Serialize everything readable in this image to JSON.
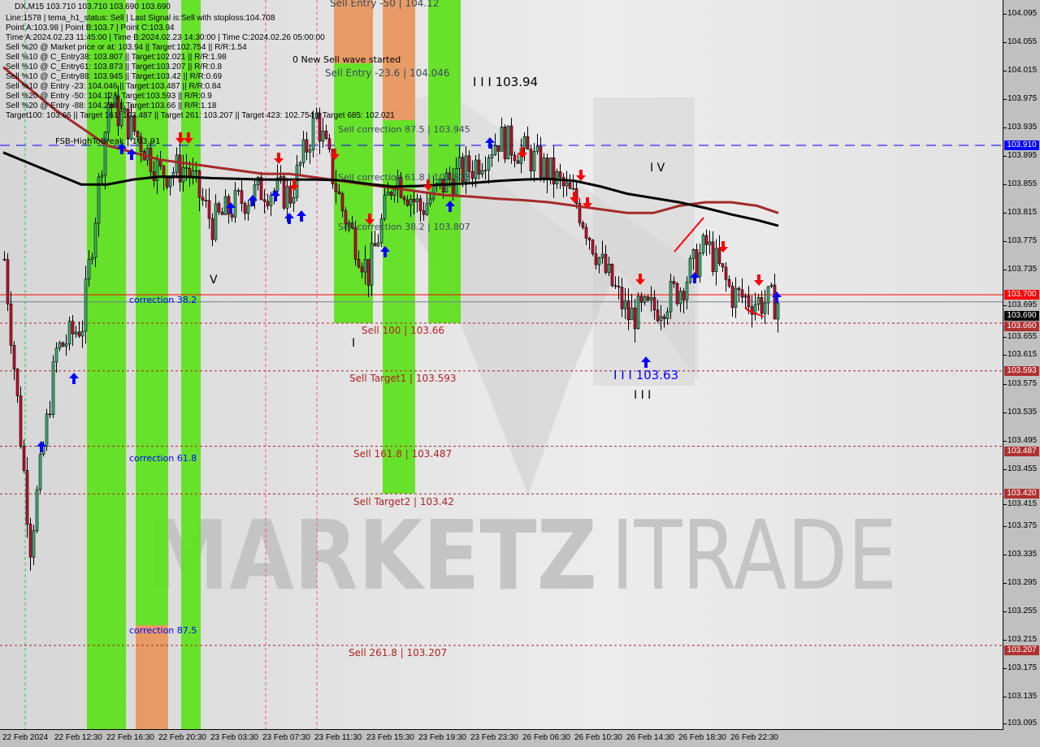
{
  "info": {
    "symbol_line": "DX,M15  103.710 103.710 103.690 103.690",
    "lines": [
      "Line:1578 | tema_h1_status: Sell | Last Signal is:Sell with stoploss:104.708",
      "Point A:103.98 | Point B:103.7 | Point C:103.94",
      "Time A:2024.02.23 11:45:00 | Time B:2024.02.23 14:30:00 | Time C:2024.02.26 05:00:00",
      "Sell %20 @ Market price or at: 103.94 || Target:102.754 || R/R:1.54",
      "Sell %10 @ C_Entry38: 103.807 || Target:102.021 || R/R:1.98",
      "Sell %10 @ C_Entry61: 103.873 || Target:103.207 || R/R:0.8",
      "Sell %10 @ C_Entry88: 103.945 || Target:103.42 || R/R:0.69",
      "Sell %10 @ Entry -23: 104.046 || Target:103.487 || R/R:0.84",
      "Sell %20 @ Entry -50: 104.12 || Target:103.593 || R/R:0.9",
      "Sell %20 @ Entry -88: 104.228 || Target:103.66 || R/R:1.18",
      "Target100: 103.66 || Target 161: 103.487 || Target 261: 103.207 || Target 423: 102.754 || Target 685: 102.021"
    ]
  },
  "annotations": {
    "new_wave": "0 New Sell wave started",
    "fsb": "FSB-HighToBreak | 103.91",
    "sell_entry_50": "Sell Entry -50 | 104.12",
    "sell_entry_23": "Sell Entry -23.6 | 104.046",
    "sell_corr_875": "Sell correction 87.5 | 103.945",
    "sell_corr_618": "Sell correction 61.8 | 103.873",
    "sell_corr_382": "Sell correction 38.2 | 103.807",
    "sell_100": "Sell 100 | 103.66",
    "sell_target1": "Sell Target1 | 103.593",
    "sell_1618": "Sell 161.8 | 103.487",
    "sell_target2": "Sell Target2 | 103.42",
    "sell_2618": "Sell 261.8 | 103.207",
    "corr_382": "correction 38.2",
    "corr_618": "correction 61.8",
    "corr_875": "correction 87.5",
    "wave_iii_top": "I I I 103.94",
    "wave_iv": "I V",
    "wave_v": "V",
    "wave_iii_low": "I I I 103.63",
    "wave_iii": "I I I",
    "wave_i": "I",
    "watermark_a": "MARKETZ",
    "watermark_b": "ITRADE"
  },
  "chart_data": {
    "type": "candlestick",
    "symbol": "DX",
    "timeframe": "M15",
    "ylim": [
      103.075,
      104.115
    ],
    "y_ticks": [
      "104.095",
      "104.055",
      "104.015",
      "103.975",
      "103.935",
      "103.895",
      "103.855",
      "103.815",
      "103.775",
      "103.735",
      "103.695",
      "103.655",
      "103.615",
      "103.575",
      "103.535",
      "103.495",
      "103.455",
      "103.415",
      "103.375",
      "103.335",
      "103.295",
      "103.255",
      "103.215",
      "103.175",
      "103.135",
      "103.095"
    ],
    "x_ticks": [
      "22 Feb 2024",
      "22 Feb 12:30",
      "22 Feb 16:30",
      "22 Feb 20:30",
      "23 Feb 03:30",
      "23 Feb 07:30",
      "23 Feb 11:30",
      "23 Feb 15:30",
      "23 Feb 19:30",
      "23 Feb 23:30",
      "26 Feb 06:30",
      "26 Feb 10:30",
      "26 Feb 14:30",
      "26 Feb 18:30",
      "26 Feb 22:30"
    ],
    "approx_close_every_2h": [
      103.75,
      103.35,
      103.62,
      103.66,
      103.97,
      103.93,
      103.87,
      103.88,
      103.8,
      103.83,
      103.85,
      103.84,
      103.95,
      103.82,
      103.73,
      103.87,
      103.82,
      103.86,
      103.88,
      103.92,
      103.9,
      103.87,
      103.83,
      103.74,
      103.67,
      103.68,
      103.71,
      103.77,
      103.7,
      103.69,
      103.69
    ],
    "ma_red": [
      104.02,
      103.99,
      103.96,
      103.935,
      103.91,
      103.9,
      103.89,
      103.885,
      103.88,
      103.875,
      103.87,
      103.87,
      103.865,
      103.86,
      103.855,
      103.85,
      103.845,
      103.84,
      103.838,
      103.835,
      103.833,
      103.83,
      103.825,
      103.82,
      103.815,
      103.815,
      103.825,
      103.83,
      103.83,
      103.825,
      103.815
    ],
    "ma_black": [
      103.9,
      103.885,
      103.87,
      103.855,
      103.855,
      103.862,
      103.866,
      103.866,
      103.864,
      103.863,
      103.862,
      103.862,
      103.862,
      103.861,
      103.856,
      103.852,
      103.853,
      103.855,
      103.857,
      103.86,
      103.862,
      103.863,
      103.86,
      103.852,
      103.842,
      103.836,
      103.83,
      103.822,
      103.813,
      103.805,
      103.797
    ],
    "levels": [
      {
        "price": 103.91,
        "label": "103.910",
        "color": "#0000ff",
        "style": "dashed-long"
      },
      {
        "price": 103.7,
        "label": "103.700",
        "color": "#ff0000",
        "style": "solid"
      },
      {
        "price": 103.69,
        "label": "103.690",
        "color": "#000000",
        "style": "solid"
      },
      {
        "price": 103.66,
        "label": "103.660",
        "color": "#b22222",
        "style": "dashed"
      },
      {
        "price": 103.593,
        "label": "103.593",
        "color": "#b22222",
        "style": "dashed"
      },
      {
        "price": 103.487,
        "label": "103.487",
        "color": "#b22222",
        "style": "dashed"
      },
      {
        "price": 103.42,
        "label": "103.420",
        "color": "#b22222",
        "style": "dashed"
      },
      {
        "price": 103.207,
        "label": "103.207",
        "color": "#b22222",
        "style": "dashed"
      }
    ],
    "colors": {
      "bull": "#3cb371",
      "bear": "#c8102e",
      "zone_green": "#5ce21a",
      "zone_orange": "#e8955a",
      "label_red": "#b22222",
      "wave_blue": "#0000ff"
    }
  }
}
